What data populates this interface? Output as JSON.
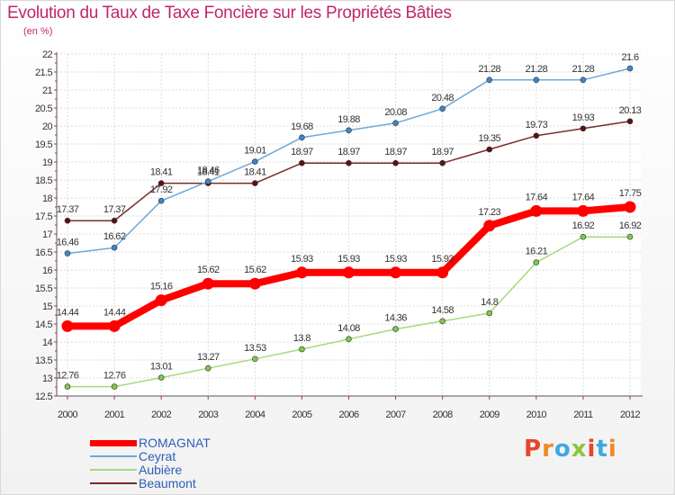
{
  "title": "Evolution du Taux de Taxe Foncière sur les Propriétés Bâties",
  "unit_label": "(en %)",
  "logo": {
    "letters": [
      "P",
      "r",
      "o",
      "x",
      "i",
      "t",
      "i"
    ],
    "colors": [
      "#e8452c",
      "#f08a24",
      "#3fa9df",
      "#8cc63f",
      "#e8452c",
      "#3fa9df",
      "#f08a24"
    ]
  },
  "chart_data": {
    "type": "line",
    "title": "Evolution du Taux de Taxe Foncière sur les Propriétés Bâties",
    "ylabel": "(en %)",
    "xlabel": "",
    "x": [
      "2000",
      "2001",
      "2002",
      "2003",
      "2004",
      "2005",
      "2006",
      "2007",
      "2008",
      "2009",
      "2010",
      "2011",
      "2012"
    ],
    "ylim": [
      12.5,
      22
    ],
    "yticks": [
      "12.5",
      "13",
      "13.5",
      "14",
      "14.5",
      "15",
      "15.5",
      "16",
      "16.5",
      "17",
      "17.5",
      "18",
      "18.5",
      "19",
      "19.5",
      "20",
      "20.5",
      "21",
      "21.5",
      "22"
    ],
    "grid": true,
    "legend_position": "bottom-left",
    "series": [
      {
        "name": "ROMAGNAT",
        "color": "#ff0000",
        "values": [
          14.44,
          14.44,
          15.16,
          15.62,
          15.62,
          15.93,
          15.93,
          15.93,
          15.93,
          17.23,
          17.64,
          17.64,
          17.75
        ],
        "labels": [
          "14.44",
          "14.44",
          "15.16",
          "15.62",
          "15.62",
          "15.93",
          "15.93",
          "15.93",
          "15.93",
          "17.23",
          "17.64",
          "17.64",
          "17.75"
        ]
      },
      {
        "name": "Ceyrat",
        "color": "#6ea8d8",
        "values": [
          16.46,
          16.62,
          17.92,
          18.46,
          19.01,
          19.68,
          19.88,
          20.08,
          20.48,
          21.28,
          21.28,
          21.28,
          21.6
        ],
        "labels": [
          "16.46",
          "16.62",
          "17.92",
          "18.46",
          "19.01",
          "19.68",
          "19.88",
          "20.08",
          "20.48",
          "21.28",
          "21.28",
          "21.28",
          "21.6"
        ]
      },
      {
        "name": "Aubière",
        "color": "#a6d97c",
        "values": [
          12.76,
          12.76,
          13.01,
          13.27,
          13.53,
          13.8,
          14.08,
          14.36,
          14.58,
          14.8,
          16.21,
          16.92,
          16.92
        ],
        "labels": [
          "12.76",
          "12.76",
          "13.01",
          "13.27",
          "13.53",
          "13.8",
          "14.08",
          "14.36",
          "14.58",
          "14.8",
          "16.21",
          "16.92",
          "16.92"
        ]
      },
      {
        "name": "Beaumont",
        "color": "#7a2a2a",
        "values": [
          17.37,
          17.37,
          18.41,
          18.41,
          18.41,
          18.97,
          18.97,
          18.97,
          18.97,
          19.35,
          19.73,
          19.93,
          20.13
        ],
        "labels": [
          "17.37",
          "17.37",
          "18.41",
          "18.41",
          "18.41",
          "18.97",
          "18.97",
          "18.97",
          "18.97",
          "19.35",
          "19.73",
          "19.93",
          "20.13"
        ]
      }
    ]
  }
}
